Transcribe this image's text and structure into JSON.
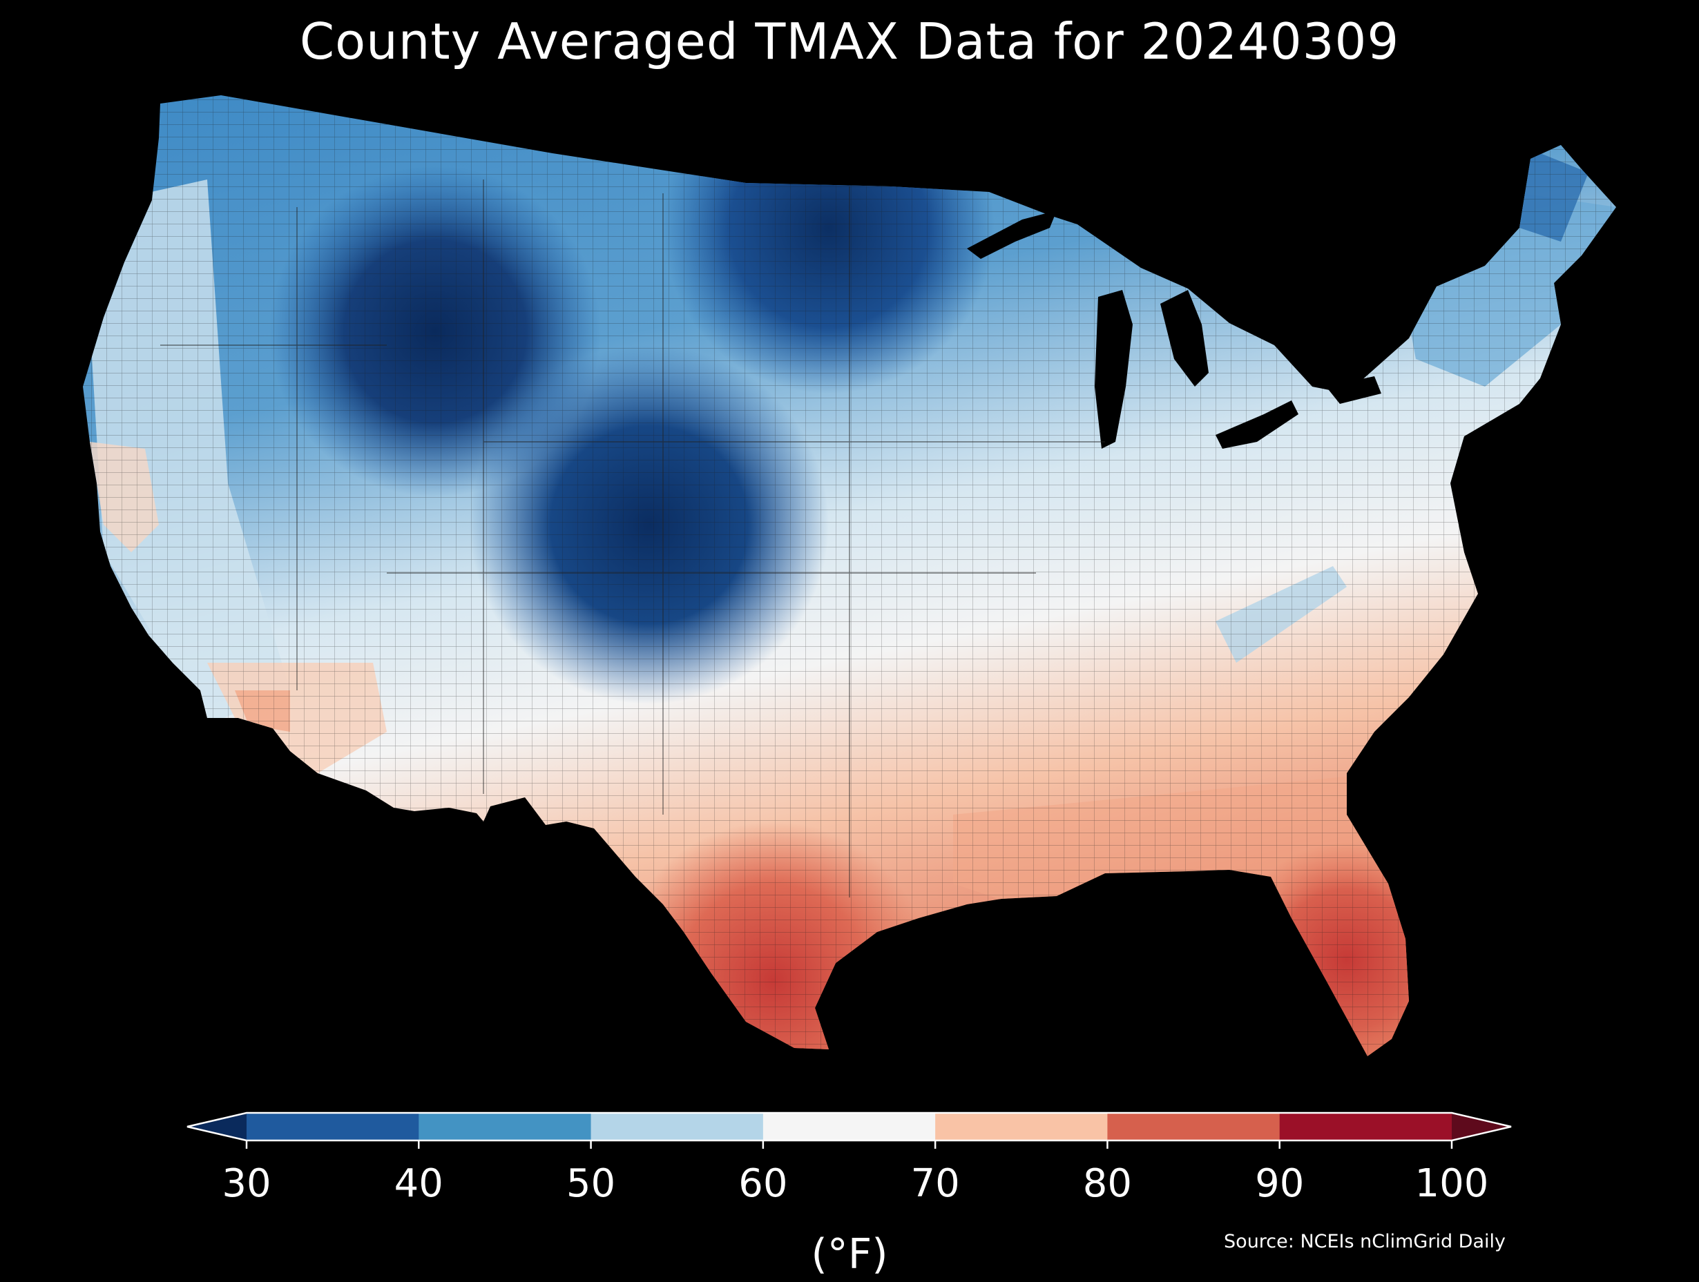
{
  "title": "County Averaged TMAX Data for 20240309",
  "colorbar": {
    "units": "(°F)",
    "ticks": [
      "30",
      "40",
      "50",
      "60",
      "70",
      "80",
      "90",
      "100"
    ],
    "bins": [
      {
        "range": "<30",
        "color": "#0a2a5c"
      },
      {
        "range": "30-40",
        "color": "#1f5a9e"
      },
      {
        "range": "40-50",
        "color": "#4393c3"
      },
      {
        "range": "50-60",
        "color": "#b4d5e8"
      },
      {
        "range": "60-70",
        "color": "#f5f5f5"
      },
      {
        "range": "70-80",
        "color": "#f9c3a6"
      },
      {
        "range": "80-90",
        "color": "#d6604d"
      },
      {
        "range": "90-100",
        "color": "#9b1028"
      },
      {
        "range": ">100",
        "color": "#5e0a1c"
      }
    ]
  },
  "source": "Source: NCEIs nClimGrid Daily",
  "map": {
    "region": "Contiguous United States",
    "variable": "TMAX",
    "date": "20240309",
    "colors": {
      "coldest": "#0d3367",
      "very_cold": "#1d5ba3",
      "cold": "#3a87c4",
      "cool": "#8cbfde",
      "mild": "#d6e7f1",
      "neutral": "#f4f4f4",
      "warm": "#f6c3a8",
      "hot": "#e37a5f",
      "hottest": "#c63a36",
      "ocean": "#000000"
    }
  }
}
